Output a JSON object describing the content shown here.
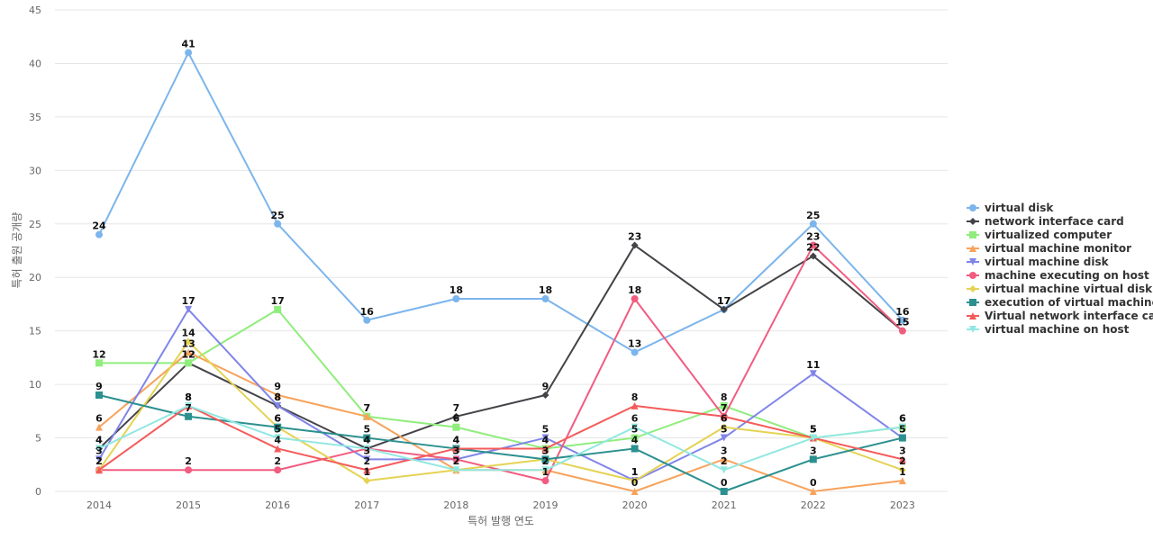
{
  "chart_data": {
    "type": "line",
    "xlabel": "특허 발행 연도",
    "ylabel": "특허 출원 공개량",
    "x": [
      "2014",
      "2015",
      "2016",
      "2017",
      "2018",
      "2019",
      "2020",
      "2021",
      "2022",
      "2023"
    ],
    "ylim": [
      0,
      45
    ],
    "yticks": [
      0,
      5,
      10,
      15,
      20,
      25,
      30,
      35,
      40,
      45
    ],
    "grid": true,
    "legend_position": "right",
    "series": [
      {
        "name": "virtual disk",
        "color": "#7cb5ec",
        "marker": "circle",
        "values": [
          24,
          41,
          25,
          16,
          18,
          18,
          13,
          17,
          25,
          16
        ]
      },
      {
        "name": "network interface card",
        "color": "#434348",
        "marker": "diamond",
        "values": [
          4,
          12,
          8,
          4,
          7,
          9,
          23,
          17,
          22,
          15
        ]
      },
      {
        "name": "virtualized computer",
        "color": "#90ed7d",
        "marker": "square",
        "values": [
          12,
          12,
          17,
          7,
          6,
          4,
          5,
          8,
          5,
          6
        ]
      },
      {
        "name": "virtual machine monitor",
        "color": "#f7a35c",
        "marker": "triangle",
        "values": [
          6,
          13,
          9,
          7,
          2,
          2,
          0,
          3,
          0,
          1
        ]
      },
      {
        "name": "virtual machine disk",
        "color": "#8085e9",
        "marker": "triangle-down",
        "values": [
          3,
          17,
          8,
          3,
          3,
          5,
          1,
          5,
          11,
          5
        ]
      },
      {
        "name": "machine executing on host",
        "color": "#f15c80",
        "marker": "circle",
        "values": [
          2,
          2,
          2,
          4,
          3,
          1,
          18,
          7,
          23,
          15
        ]
      },
      {
        "name": "virtual machine virtual disk",
        "color": "#e4d354",
        "marker": "diamond",
        "values": [
          2,
          14,
          6,
          1,
          2,
          3,
          1,
          6,
          5,
          2
        ]
      },
      {
        "name": "execution of virtual machine",
        "color": "#2b908f",
        "marker": "square",
        "values": [
          9,
          7,
          6,
          5,
          4,
          3,
          4,
          0,
          3,
          5
        ]
      },
      {
        "name": "Virtual network interface card",
        "color": "#f45b5b",
        "marker": "triangle",
        "values": [
          2,
          8,
          4,
          2,
          4,
          4,
          8,
          7,
          5,
          3
        ]
      },
      {
        "name": "virtual machine on host",
        "color": "#91e8e1",
        "marker": "triangle-down",
        "values": [
          4,
          8,
          5,
          4,
          2,
          2,
          6,
          2,
          5,
          6
        ]
      }
    ]
  }
}
